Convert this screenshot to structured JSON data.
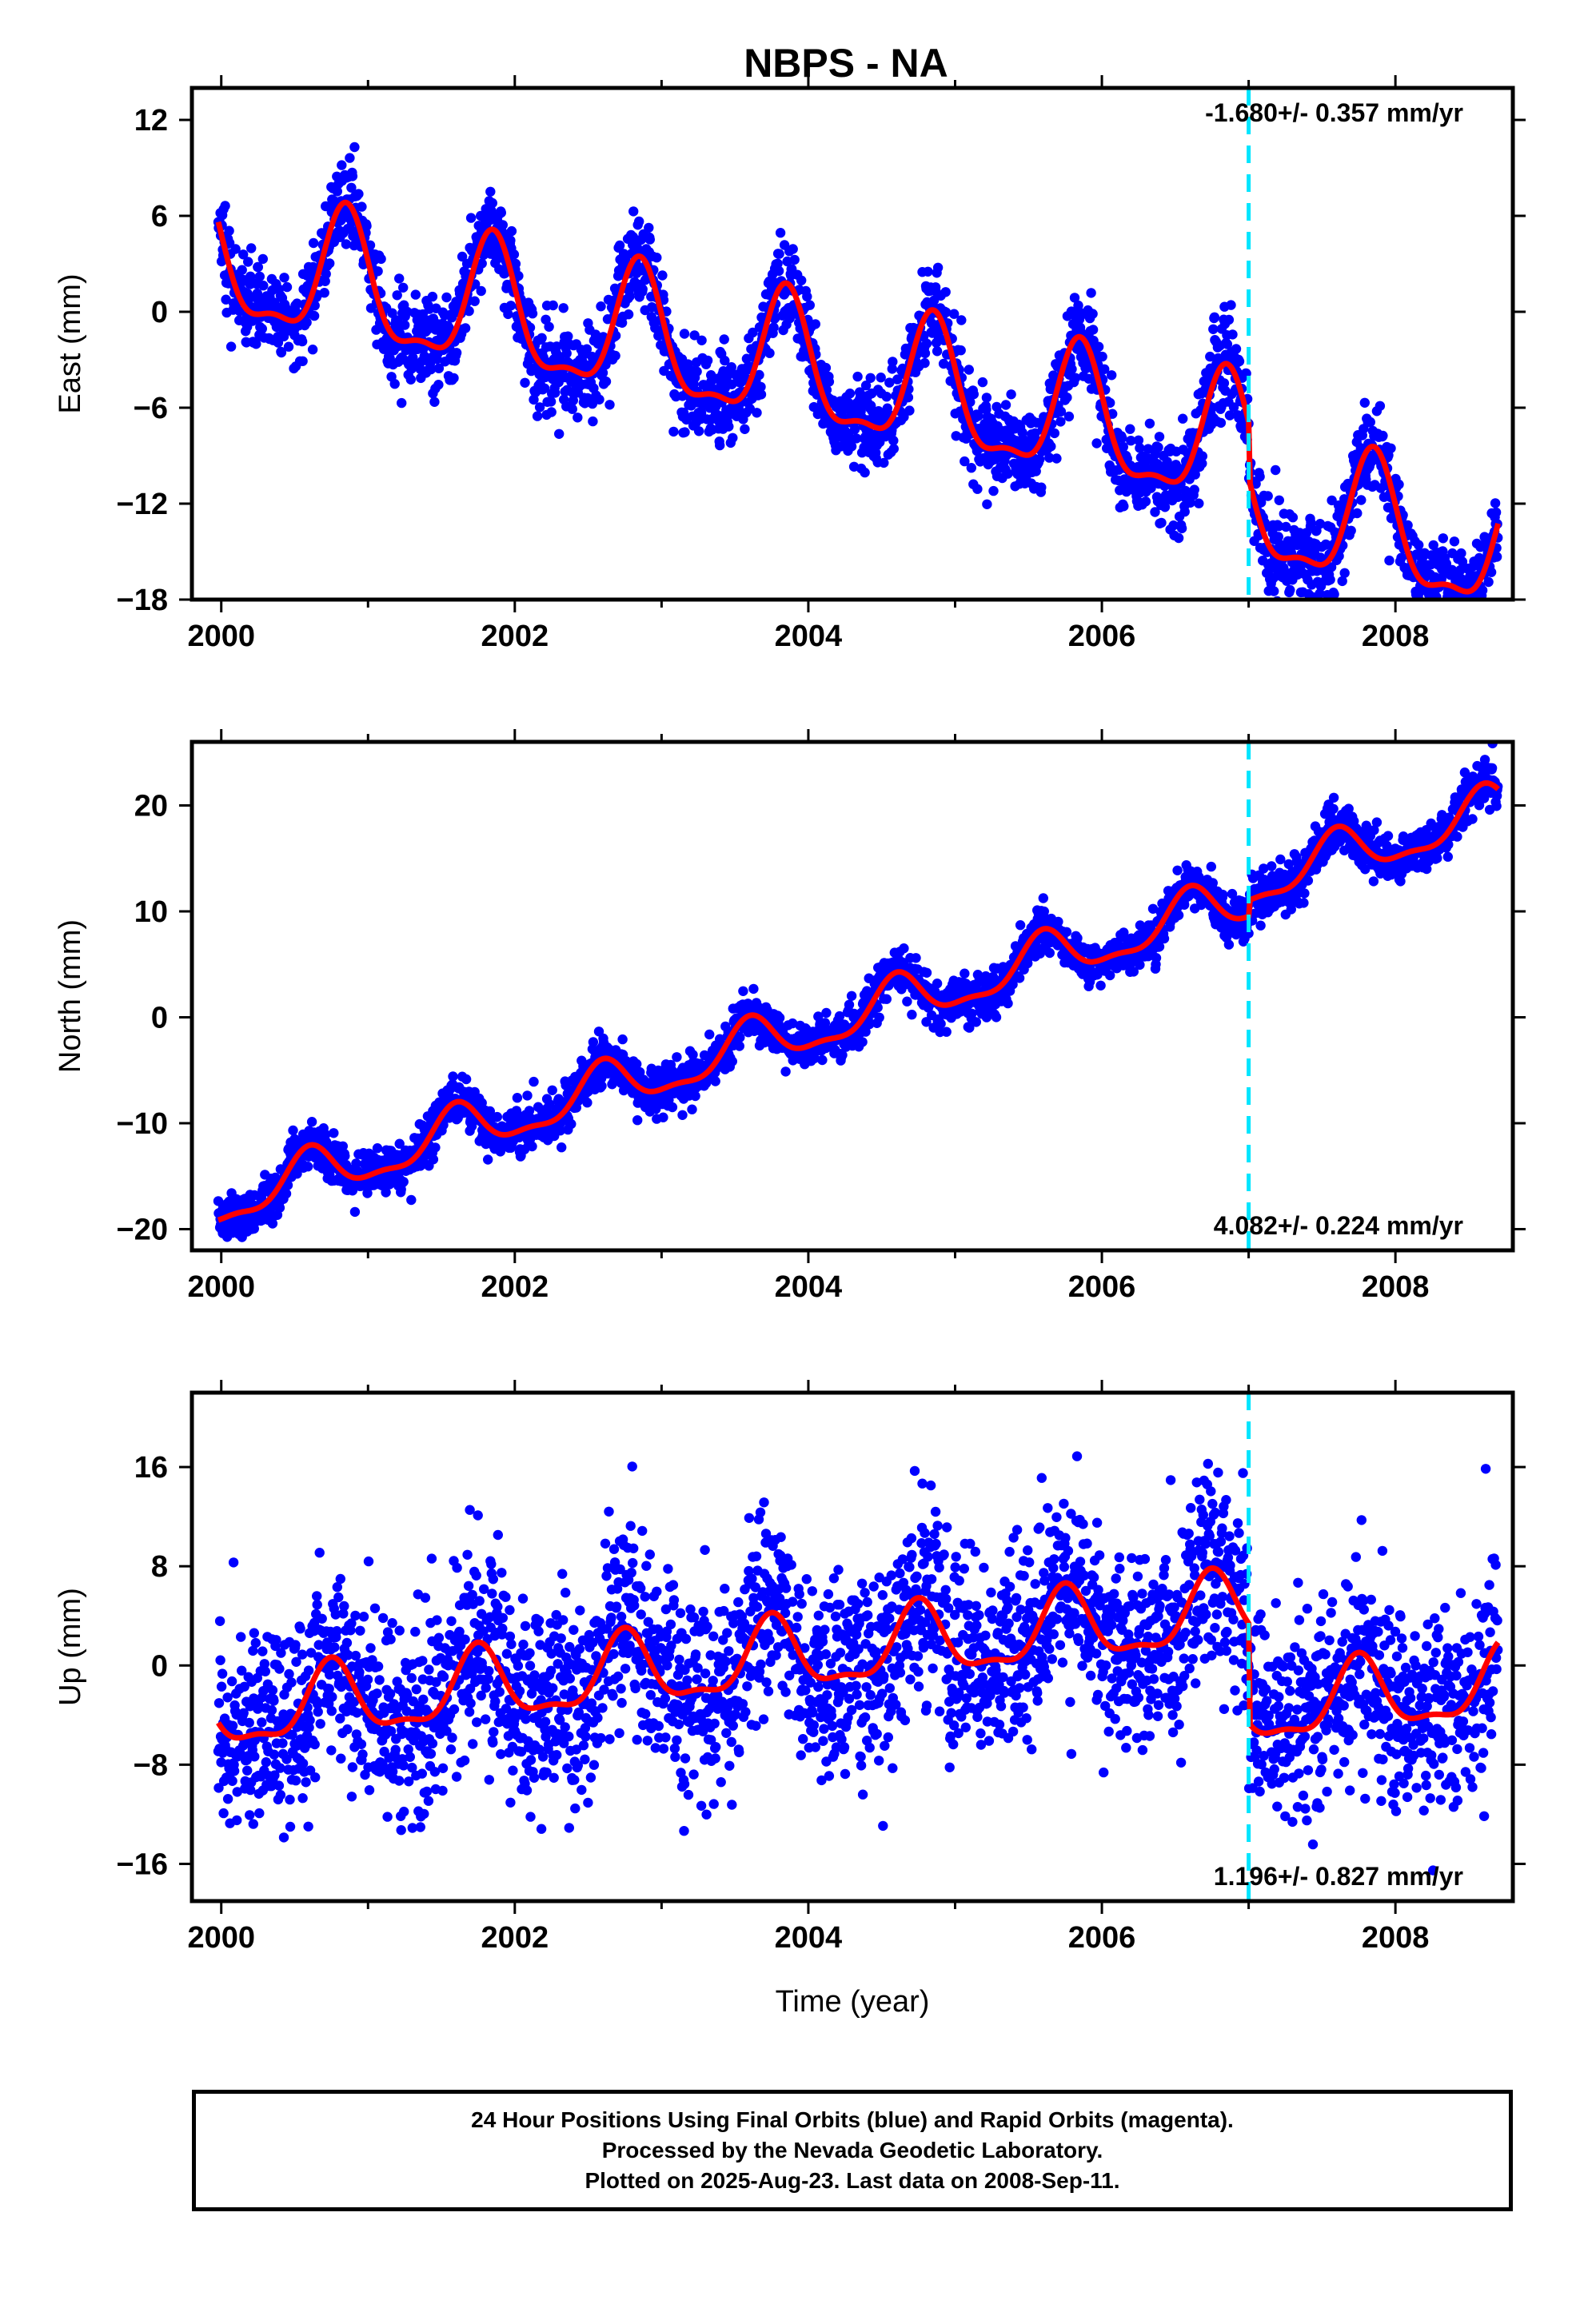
{
  "title": "NBPS - NA",
  "colors": {
    "points": "#0000ff",
    "model": "#ff0000",
    "event_line": "#00e5ff",
    "frame": "#000000"
  },
  "chart_data": [
    {
      "type": "scatter",
      "ylabel": "East (mm)",
      "xlabel": "",
      "xlim": [
        1999.8,
        2008.8
      ],
      "ylim": [
        -18,
        14
      ],
      "xticks": [
        2000,
        2002,
        2004,
        2006,
        2008
      ],
      "xtick_labels": [
        "2000",
        "2002",
        "2004",
        "2006",
        "2008"
      ],
      "yticks": [
        -18,
        -12,
        -6,
        0,
        6,
        12
      ],
      "ytick_labels": [
        "−18",
        "−12",
        "−6",
        "0",
        "6",
        "12"
      ],
      "rate_label": "-1.680+/- 0.357 mm/yr",
      "rate_position": "top-right",
      "event_x": 2007.0,
      "trend": {
        "slope": -1.68,
        "intercept_at_2000": 3.0,
        "amplitude": 3.9,
        "phase_peak": 0.85,
        "step_at_event": -3.5
      },
      "noise": 1.4,
      "series": [
        {
          "name": "",
          "kind": "scatter"
        },
        {
          "name": "",
          "kind": "model"
        }
      ]
    },
    {
      "type": "scatter",
      "ylabel": "North (mm)",
      "xlabel": "",
      "xlim": [
        1999.8,
        2008.8
      ],
      "ylim": [
        -22,
        26
      ],
      "xticks": [
        2000,
        2002,
        2004,
        2006,
        2008
      ],
      "xtick_labels": [
        "2000",
        "2002",
        "2004",
        "2006",
        "2008"
      ],
      "yticks": [
        -20,
        -10,
        0,
        10,
        20
      ],
      "ytick_labels": [
        "−20",
        "−10",
        "0",
        "10",
        "20"
      ],
      "rate_label": "4.082+/- 0.224 mm/yr",
      "rate_position": "bottom-right",
      "event_x": 2007.0,
      "trend": {
        "slope": 4.082,
        "intercept_at_2000": -17.5,
        "amplitude": 2.2,
        "phase_peak": 0.6,
        "step_at_event": 1.5
      },
      "noise": 1.1,
      "series": [
        {
          "name": "",
          "kind": "scatter"
        },
        {
          "name": "",
          "kind": "model"
        }
      ]
    },
    {
      "type": "scatter",
      "ylabel": "Up (mm)",
      "xlabel": "Time (year)",
      "xlim": [
        1999.8,
        2008.8
      ],
      "ylim": [
        -19,
        22
      ],
      "xticks": [
        2000,
        2002,
        2004,
        2006,
        2008
      ],
      "xtick_labels": [
        "2000",
        "2002",
        "2004",
        "2006",
        "2008"
      ],
      "yticks": [
        -16,
        -8,
        0,
        8,
        16
      ],
      "ytick_labels": [
        "−16",
        "−8",
        "0",
        "8",
        "16"
      ],
      "rate_label": "1.196+/- 0.827 mm/yr",
      "rate_position": "bottom-right",
      "event_x": 2007.0,
      "trend": {
        "slope": 1.196,
        "intercept_at_2000": -4.0,
        "amplitude": 2.8,
        "phase_peak": 0.75,
        "step_at_event": -8.0
      },
      "noise": 4.0,
      "series": [
        {
          "name": "",
          "kind": "scatter"
        },
        {
          "name": "",
          "kind": "model"
        }
      ]
    }
  ],
  "footer": {
    "line1": "24 Hour Positions Using Final Orbits (blue) and Rapid Orbits (magenta).",
    "line2": "Processed by the Nevada Geodetic Laboratory.",
    "line3": "Plotted on 2025-Aug-23. Last data on 2008-Sep-11."
  }
}
